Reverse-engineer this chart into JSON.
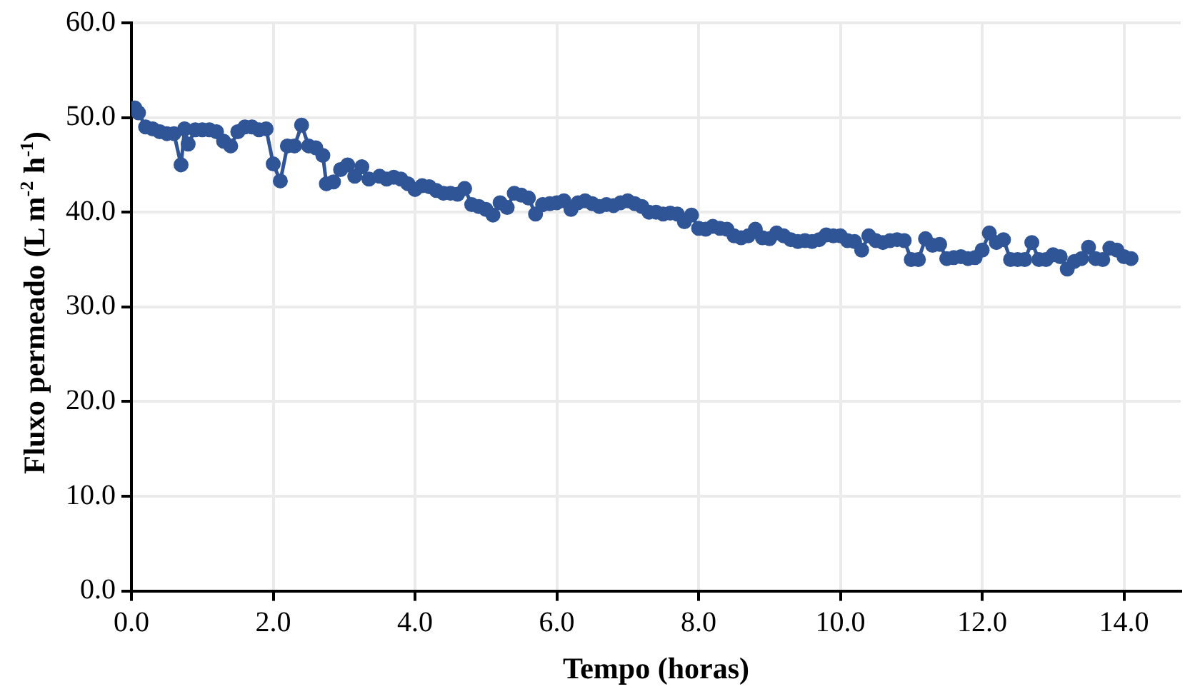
{
  "chart_data": {
    "type": "line",
    "xlabel": "Tempo (horas)",
    "ylabel": "Fluxo permeado (L m$^{-2}$ h$^{-1}$)",
    "xlim": [
      0,
      14.8
    ],
    "xticks": [
      {
        "value": 0,
        "label": "0.0"
      },
      {
        "value": 2,
        "label": "2.0"
      },
      {
        "value": 4,
        "label": "4.0"
      },
      {
        "value": 6,
        "label": "6.0"
      },
      {
        "value": 8,
        "label": "8.0"
      },
      {
        "value": 10,
        "label": "10.0"
      },
      {
        "value": 12,
        "label": "12.0"
      },
      {
        "value": 14,
        "label": "14.0"
      }
    ],
    "ylim": [
      0,
      60
    ],
    "yticks": [
      {
        "value": 0,
        "label": "0.0"
      },
      {
        "value": 10,
        "label": "10.0"
      },
      {
        "value": 20,
        "label": "20.0"
      },
      {
        "value": 30,
        "label": "30.0"
      },
      {
        "value": 40,
        "label": "40.0"
      },
      {
        "value": 50,
        "label": "50.0"
      },
      {
        "value": 60,
        "label": "60.0"
      }
    ],
    "grid": true,
    "legend": false,
    "marker": "circle",
    "line_style": "solid",
    "x": [
      0.05,
      0.1,
      0.2,
      0.3,
      0.4,
      0.5,
      0.6,
      0.7,
      0.75,
      0.8,
      0.9,
      1.0,
      1.1,
      1.2,
      1.3,
      1.4,
      1.5,
      1.6,
      1.7,
      1.8,
      1.9,
      2.0,
      2.1,
      2.2,
      2.3,
      2.4,
      2.5,
      2.6,
      2.7,
      2.75,
      2.85,
      2.95,
      3.05,
      3.15,
      3.25,
      3.35,
      3.5,
      3.6,
      3.7,
      3.8,
      3.9,
      4.0,
      4.1,
      4.2,
      4.3,
      4.4,
      4.5,
      4.6,
      4.7,
      4.8,
      4.9,
      5.0,
      5.1,
      5.2,
      5.3,
      5.4,
      5.5,
      5.6,
      5.7,
      5.8,
      5.9,
      6.0,
      6.1,
      6.2,
      6.3,
      6.4,
      6.5,
      6.6,
      6.7,
      6.8,
      6.9,
      7.0,
      7.1,
      7.2,
      7.3,
      7.4,
      7.5,
      7.6,
      7.7,
      7.8,
      7.9,
      8.0,
      8.1,
      8.2,
      8.3,
      8.4,
      8.5,
      8.6,
      8.7,
      8.8,
      8.9,
      9.0,
      9.1,
      9.2,
      9.3,
      9.4,
      9.5,
      9.6,
      9.7,
      9.8,
      9.9,
      10.0,
      10.1,
      10.2,
      10.3,
      10.4,
      10.5,
      10.6,
      10.7,
      10.8,
      10.9,
      11.0,
      11.1,
      11.2,
      11.3,
      11.4,
      11.5,
      11.6,
      11.7,
      11.8,
      11.9,
      12.0,
      12.1,
      12.2,
      12.3,
      12.4,
      12.5,
      12.6,
      12.7,
      12.8,
      12.9,
      13.0,
      13.1,
      13.2,
      13.3,
      13.4,
      13.5,
      13.6,
      13.7,
      13.8,
      13.9,
      14.0,
      14.1
    ],
    "series": [
      {
        "color": "#2f5597",
        "values": [
          51.0,
          50.5,
          49,
          48.8,
          48.5,
          48.3,
          48.3,
          45,
          48.8,
          47.2,
          48.7,
          48.7,
          48.7,
          48.5,
          47.5,
          47.0,
          48.5,
          49,
          49,
          48.7,
          48.8,
          45.1,
          43.3,
          47,
          47,
          49.2,
          47,
          46.8,
          46,
          43,
          43.2,
          44.5,
          45,
          43.8,
          44.8,
          43.5,
          43.8,
          43.5,
          43.7,
          43.5,
          43,
          42.4,
          42.8,
          42.7,
          42.3,
          42,
          42,
          41.9,
          42.5,
          40.8,
          40.6,
          40.3,
          39.7,
          41,
          40.5,
          42,
          41.8,
          41.5,
          39.8,
          40.8,
          40.9,
          41,
          41.2,
          40.3,
          41,
          41.2,
          40.9,
          40.6,
          40.8,
          40.7,
          41,
          41.2,
          40.9,
          40.6,
          40,
          40,
          39.8,
          39.9,
          39.8,
          39,
          39.7,
          38.3,
          38.2,
          38.5,
          38.3,
          38.2,
          37.5,
          37.3,
          37.5,
          38.2,
          37.3,
          37.2,
          37.8,
          37.5,
          37.1,
          36.9,
          37,
          36.9,
          37.1,
          37.6,
          37.5,
          37.5,
          37,
          36.9,
          36,
          37.5,
          37,
          36.8,
          37,
          37.1,
          37,
          35,
          35,
          37.2,
          36.5,
          36.6,
          35.1,
          35.2,
          35.3,
          35.1,
          35.2,
          36,
          37.8,
          36.8,
          37.1,
          35,
          35,
          35,
          36.8,
          35,
          35,
          35.5,
          35.3,
          34,
          34.8,
          35.1,
          36.3,
          35.1,
          35,
          36.2,
          36,
          35.3,
          35.1
        ]
      }
    ]
  }
}
